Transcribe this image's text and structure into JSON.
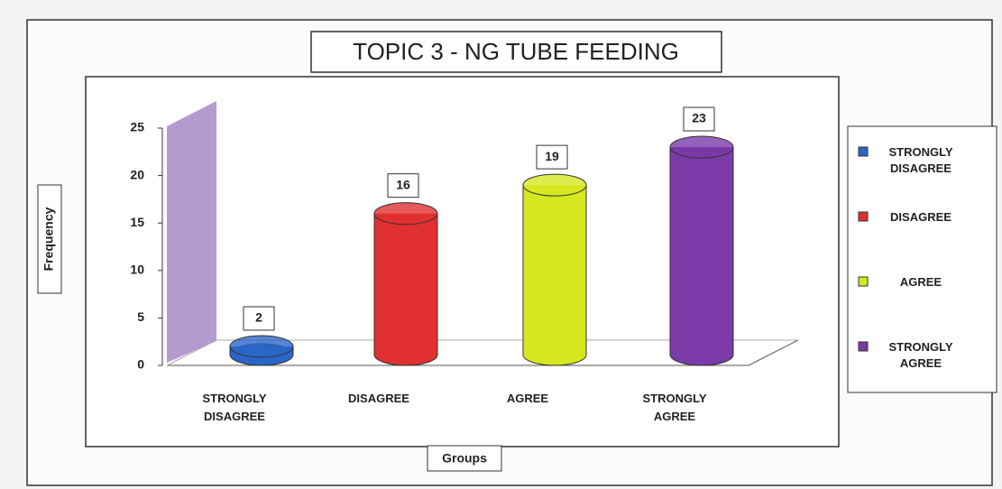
{
  "chart_data": {
    "type": "bar",
    "title": "TOPIC 3 - NG TUBE FEEDING",
    "x_label": "Groups",
    "y_label": "Frequency",
    "categories": [
      "STRONGLY DISAGREE",
      "DISAGREE",
      "AGREE",
      "STRONGLY AGREE"
    ],
    "values": [
      2,
      16,
      19,
      23
    ],
    "colors": [
      "#2a66c8",
      "#e03030",
      "#d6e820",
      "#7a3aa8"
    ],
    "ylim": [
      0,
      25
    ],
    "yticks": [
      0,
      5,
      10,
      15,
      20,
      25
    ],
    "legend": "right"
  }
}
